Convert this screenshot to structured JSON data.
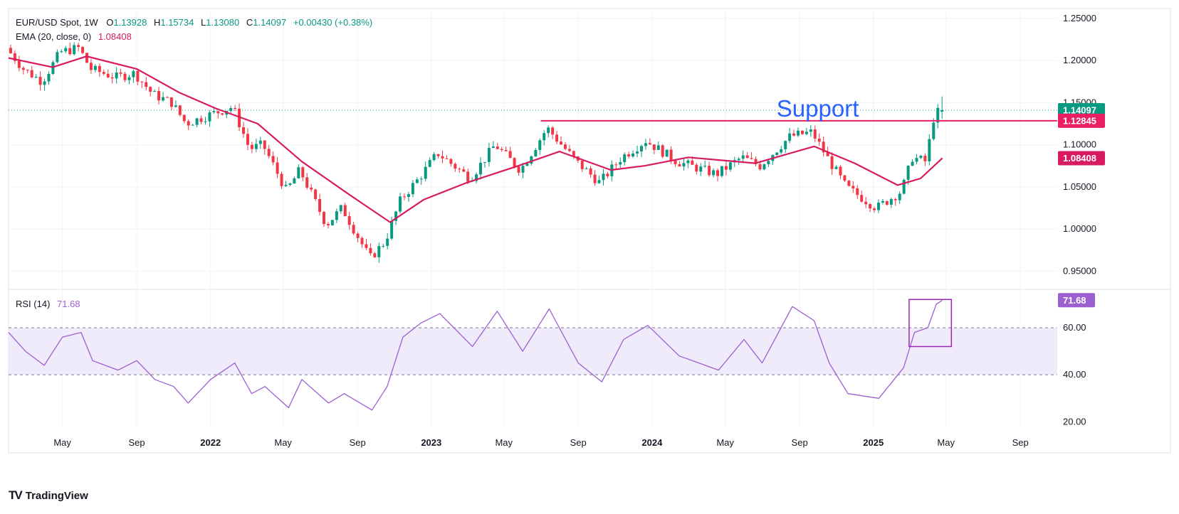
{
  "legend": {
    "symbol": "EUR/USD Spot, 1W",
    "open_label": "O",
    "open": "1.13928",
    "high_label": "H",
    "high": "1.15734",
    "low_label": "L",
    "low": "1.13080",
    "close_label": "C",
    "close": "1.14097",
    "change": "+0.00430 (+0.38%)",
    "ema_label": "EMA (20, close, 0)",
    "ema_value": "1.08408",
    "rsi_label": "RSI (14)",
    "rsi_value": "71.68"
  },
  "annotation": {
    "support_text": "Support"
  },
  "price_badges": {
    "close": "1.14097",
    "support": "1.12845",
    "ema": "1.08408"
  },
  "rsi_badge": "71.68",
  "colors": {
    "up": "#089981",
    "down": "#f23645",
    "ema": "#d81b60",
    "support_line": "#e91e63",
    "rsi_line": "#9c5fd1",
    "rsi_band": "#f0ebfa",
    "rsi_box": "#9c27b0",
    "support_text": "#2962ff",
    "close_badge": "#089981"
  },
  "branding": {
    "logo": "TV",
    "name": "TradingView"
  },
  "chart_data": {
    "type": "candlestick",
    "title": "EUR/USD Spot, 1W",
    "x_ticks": [
      {
        "date": "2021-05-01",
        "label": "May"
      },
      {
        "date": "2021-09-01",
        "label": "Sep"
      },
      {
        "date": "2022-01-01",
        "label": "2022"
      },
      {
        "date": "2022-05-01",
        "label": "May"
      },
      {
        "date": "2022-09-01",
        "label": "Sep"
      },
      {
        "date": "2023-01-01",
        "label": "2023"
      },
      {
        "date": "2023-05-01",
        "label": "May"
      },
      {
        "date": "2023-09-01",
        "label": "Sep"
      },
      {
        "date": "2024-01-01",
        "label": "2024"
      },
      {
        "date": "2024-05-01",
        "label": "May"
      },
      {
        "date": "2024-09-01",
        "label": "Sep"
      },
      {
        "date": "2025-01-01",
        "label": "2025"
      },
      {
        "date": "2025-05-01",
        "label": "May"
      },
      {
        "date": "2025-09-01",
        "label": "Sep"
      }
    ],
    "x_range": [
      "2021-02-01",
      "2025-11-01"
    ],
    "price_axis": {
      "ylim": [
        0.93,
        1.26
      ],
      "ticks": [
        "0.95000",
        "1.00000",
        "1.05000",
        "1.10000",
        "1.15000",
        "1.20000",
        "1.25000"
      ]
    },
    "price_path": [
      [
        "2021-02-01",
        1.215
      ],
      [
        "2021-03-01",
        1.19
      ],
      [
        "2021-04-01",
        1.175
      ],
      [
        "2021-05-01",
        1.21
      ],
      [
        "2021-06-01",
        1.215
      ],
      [
        "2021-06-20",
        1.19
      ],
      [
        "2021-08-01",
        1.18
      ],
      [
        "2021-09-01",
        1.185
      ],
      [
        "2021-10-01",
        1.16
      ],
      [
        "2021-11-01",
        1.15
      ],
      [
        "2021-11-25",
        1.125
      ],
      [
        "2022-01-01",
        1.135
      ],
      [
        "2022-02-10",
        1.145
      ],
      [
        "2022-03-10",
        1.095
      ],
      [
        "2022-04-01",
        1.1
      ],
      [
        "2022-05-10",
        1.045
      ],
      [
        "2022-06-01",
        1.07
      ],
      [
        "2022-07-15",
        1.005
      ],
      [
        "2022-08-10",
        1.025
      ],
      [
        "2022-09-25",
        0.965
      ],
      [
        "2022-10-20",
        0.985
      ],
      [
        "2022-11-15",
        1.035
      ],
      [
        "2022-12-15",
        1.06
      ],
      [
        "2023-01-15",
        1.09
      ],
      [
        "2023-03-10",
        1.06
      ],
      [
        "2023-04-20",
        1.1
      ],
      [
        "2023-06-01",
        1.07
      ],
      [
        "2023-07-15",
        1.12
      ],
      [
        "2023-09-01",
        1.08
      ],
      [
        "2023-10-10",
        1.055
      ],
      [
        "2023-11-15",
        1.085
      ],
      [
        "2023-12-25",
        1.105
      ],
      [
        "2024-02-15",
        1.08
      ],
      [
        "2024-04-20",
        1.065
      ],
      [
        "2024-06-01",
        1.085
      ],
      [
        "2024-07-01",
        1.075
      ],
      [
        "2024-08-20",
        1.11
      ],
      [
        "2024-09-25",
        1.115
      ],
      [
        "2024-10-20",
        1.085
      ],
      [
        "2024-11-20",
        1.05
      ],
      [
        "2025-01-10",
        1.025
      ],
      [
        "2025-02-20",
        1.045
      ],
      [
        "2025-03-10",
        1.085
      ],
      [
        "2025-04-01",
        1.08
      ],
      [
        "2025-04-15",
        1.135
      ],
      [
        "2025-04-25",
        1.141
      ]
    ],
    "last_candle": {
      "open": 1.13928,
      "high": 1.15734,
      "low": 1.1308,
      "close": 1.14097
    },
    "ema_path": [
      [
        "2021-02-01",
        1.203
      ],
      [
        "2021-04-15",
        1.192
      ],
      [
        "2021-06-10",
        1.205
      ],
      [
        "2021-09-01",
        1.19
      ],
      [
        "2021-11-10",
        1.162
      ],
      [
        "2022-01-10",
        1.143
      ],
      [
        "2022-03-20",
        1.125
      ],
      [
        "2022-06-01",
        1.08
      ],
      [
        "2022-08-20",
        1.04
      ],
      [
        "2022-10-25",
        1.008
      ],
      [
        "2022-12-20",
        1.035
      ],
      [
        "2023-03-01",
        1.055
      ],
      [
        "2023-05-25",
        1.075
      ],
      [
        "2023-08-01",
        1.092
      ],
      [
        "2023-10-25",
        1.07
      ],
      [
        "2023-12-20",
        1.075
      ],
      [
        "2024-03-01",
        1.085
      ],
      [
        "2024-06-20",
        1.078
      ],
      [
        "2024-09-25",
        1.098
      ],
      [
        "2024-12-01",
        1.078
      ],
      [
        "2025-02-10",
        1.052
      ],
      [
        "2025-03-20",
        1.06
      ],
      [
        "2025-04-25",
        1.08408
      ]
    ],
    "support": {
      "value": 1.12845,
      "from": "2023-07-01",
      "label": "Support"
    },
    "rsi_axis": {
      "ylim": [
        18,
        76
      ],
      "ticks": [
        "20.00",
        "40.00",
        "60.00"
      ],
      "band": [
        40,
        60
      ]
    },
    "rsi_path": [
      [
        "2021-02-01",
        58
      ],
      [
        "2021-03-01",
        50
      ],
      [
        "2021-04-01",
        44
      ],
      [
        "2021-05-01",
        56
      ],
      [
        "2021-06-01",
        58
      ],
      [
        "2021-06-20",
        46
      ],
      [
        "2021-08-01",
        42
      ],
      [
        "2021-09-01",
        46
      ],
      [
        "2021-10-01",
        38
      ],
      [
        "2021-11-01",
        35
      ],
      [
        "2021-11-25",
        28
      ],
      [
        "2022-01-01",
        38
      ],
      [
        "2022-02-10",
        45
      ],
      [
        "2022-03-10",
        32
      ],
      [
        "2022-04-01",
        35
      ],
      [
        "2022-05-10",
        26
      ],
      [
        "2022-06-01",
        38
      ],
      [
        "2022-07-15",
        28
      ],
      [
        "2022-08-10",
        32
      ],
      [
        "2022-09-25",
        25
      ],
      [
        "2022-10-20",
        35
      ],
      [
        "2022-11-15",
        56
      ],
      [
        "2022-12-15",
        62
      ],
      [
        "2023-01-15",
        66
      ],
      [
        "2023-03-10",
        52
      ],
      [
        "2023-04-20",
        67
      ],
      [
        "2023-06-01",
        50
      ],
      [
        "2023-07-15",
        68
      ],
      [
        "2023-09-01",
        45
      ],
      [
        "2023-10-10",
        37
      ],
      [
        "2023-11-15",
        55
      ],
      [
        "2023-12-25",
        61
      ],
      [
        "2024-02-15",
        48
      ],
      [
        "2024-04-20",
        42
      ],
      [
        "2024-06-01",
        55
      ],
      [
        "2024-07-01",
        45
      ],
      [
        "2024-08-20",
        69
      ],
      [
        "2024-09-25",
        63
      ],
      [
        "2024-10-20",
        45
      ],
      [
        "2024-11-20",
        32
      ],
      [
        "2025-01-10",
        30
      ],
      [
        "2025-02-20",
        43
      ],
      [
        "2025-03-10",
        58
      ],
      [
        "2025-04-01",
        60
      ],
      [
        "2025-04-15",
        70
      ],
      [
        "2025-04-25",
        71.68
      ]
    ],
    "highlight_box": {
      "x": [
        "2025-03-01",
        "2025-05-10"
      ],
      "y": [
        52,
        72
      ]
    }
  }
}
